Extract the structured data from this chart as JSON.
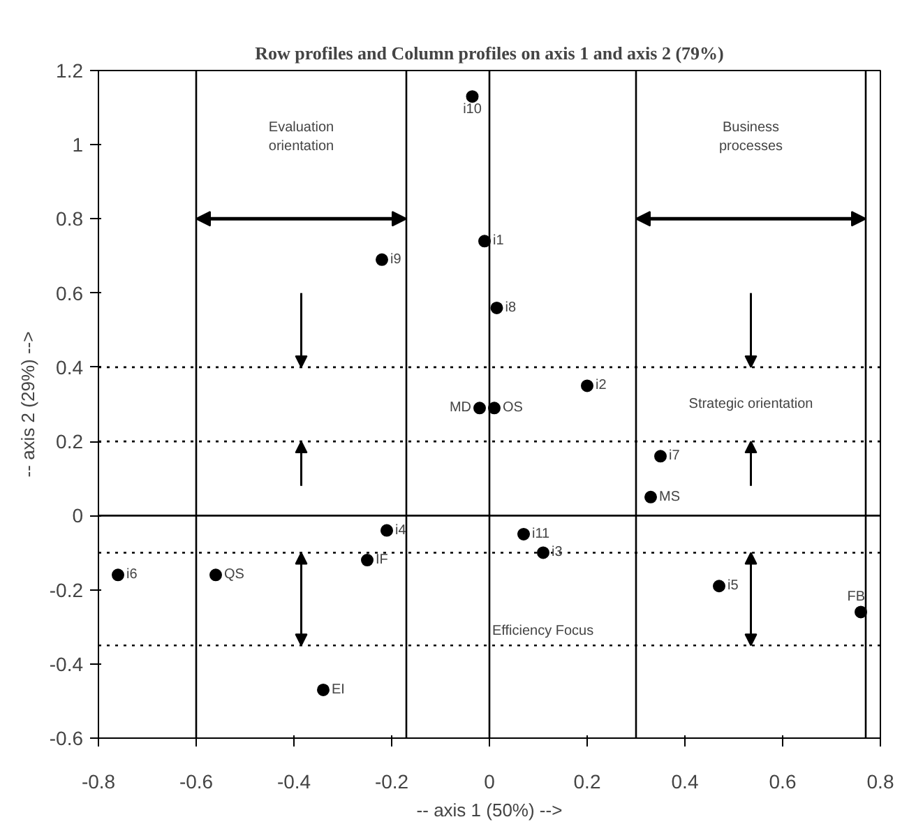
{
  "chart_data": {
    "type": "scatter",
    "title": "Row profiles and Column profiles on axis 1 and axis 2 (79%)",
    "xlabel": "-- axis 1 (50%) -->",
    "ylabel": "-- axis 2 (29%) -->",
    "x": [
      -0.035,
      -0.01,
      0.015,
      -0.22,
      -0.02,
      0.01,
      0.2,
      0.35,
      0.33,
      -0.21,
      0.07,
      0.11,
      -0.25,
      -0.76,
      -0.56,
      0.47,
      0.76,
      -0.34
    ],
    "values": [
      1.13,
      0.74,
      0.56,
      0.69,
      0.29,
      0.29,
      0.35,
      0.16,
      0.05,
      -0.04,
      -0.05,
      -0.1,
      -0.12,
      -0.16,
      -0.16,
      -0.19,
      -0.26,
      -0.47
    ],
    "color": "#000000",
    "marker": "circle",
    "annotations": [
      {
        "text": "i10",
        "x": -0.035,
        "y": 1.13
      },
      {
        "text": "i1",
        "x": -0.01,
        "y": 0.74
      },
      {
        "text": "i8",
        "x": 0.015,
        "y": 0.56
      },
      {
        "text": "i9",
        "x": -0.22,
        "y": 0.69
      },
      {
        "text": "MD",
        "x": -0.02,
        "y": 0.29
      },
      {
        "text": "OS",
        "x": 0.01,
        "y": 0.29
      },
      {
        "text": "i2",
        "x": 0.2,
        "y": 0.35
      },
      {
        "text": "i7",
        "x": 0.35,
        "y": 0.16
      },
      {
        "text": "MS",
        "x": 0.33,
        "y": 0.05
      },
      {
        "text": "i4",
        "x": -0.21,
        "y": -0.04
      },
      {
        "text": "i11",
        "x": 0.07,
        "y": -0.05
      },
      {
        "text": "i3",
        "x": 0.11,
        "y": -0.1
      },
      {
        "text": "IF",
        "x": -0.25,
        "y": -0.12
      },
      {
        "text": "i6",
        "x": -0.76,
        "y": -0.16
      },
      {
        "text": "QS",
        "x": -0.56,
        "y": -0.16
      },
      {
        "text": "i5",
        "x": 0.47,
        "y": -0.19
      },
      {
        "text": "FB",
        "x": 0.76,
        "y": -0.26
      },
      {
        "text": "EI",
        "x": -0.34,
        "y": -0.47
      },
      "Evaluation orientation",
      "Business processes",
      "Strategic orientation",
      "Efficiency Focus"
    ],
    "ref_lines": [
      {
        "axis": "x",
        "value": -0.6,
        "line_style": "solid"
      },
      {
        "axis": "x",
        "value": -0.17,
        "line_style": "solid"
      },
      {
        "axis": "x",
        "value": 0.3,
        "line_style": "solid"
      },
      {
        "axis": "x",
        "value": 0.77,
        "line_style": "solid"
      },
      {
        "axis": "y",
        "value": 0.4,
        "line_style": "dotted"
      },
      {
        "axis": "y",
        "value": 0.2,
        "line_style": "dotted"
      },
      {
        "axis": "y",
        "value": -0.1,
        "line_style": "dotted"
      },
      {
        "axis": "y",
        "value": -0.35,
        "line_style": "dotted"
      },
      {
        "axis": "x",
        "value": 0,
        "line_style": "solid"
      },
      {
        "axis": "y",
        "value": 0,
        "line_style": "solid"
      }
    ],
    "xlim": [
      -0.8,
      0.8
    ],
    "ylim": [
      -0.6,
      1.2
    ],
    "xticks": [
      -0.8,
      -0.6,
      -0.4,
      -0.2,
      0,
      0.2,
      0.4,
      0.6,
      0.8
    ],
    "yticks": [
      -0.6,
      -0.4,
      -0.2,
      0,
      0.2,
      0.4,
      0.6,
      0.8,
      1,
      1.2
    ],
    "grid": false
  }
}
